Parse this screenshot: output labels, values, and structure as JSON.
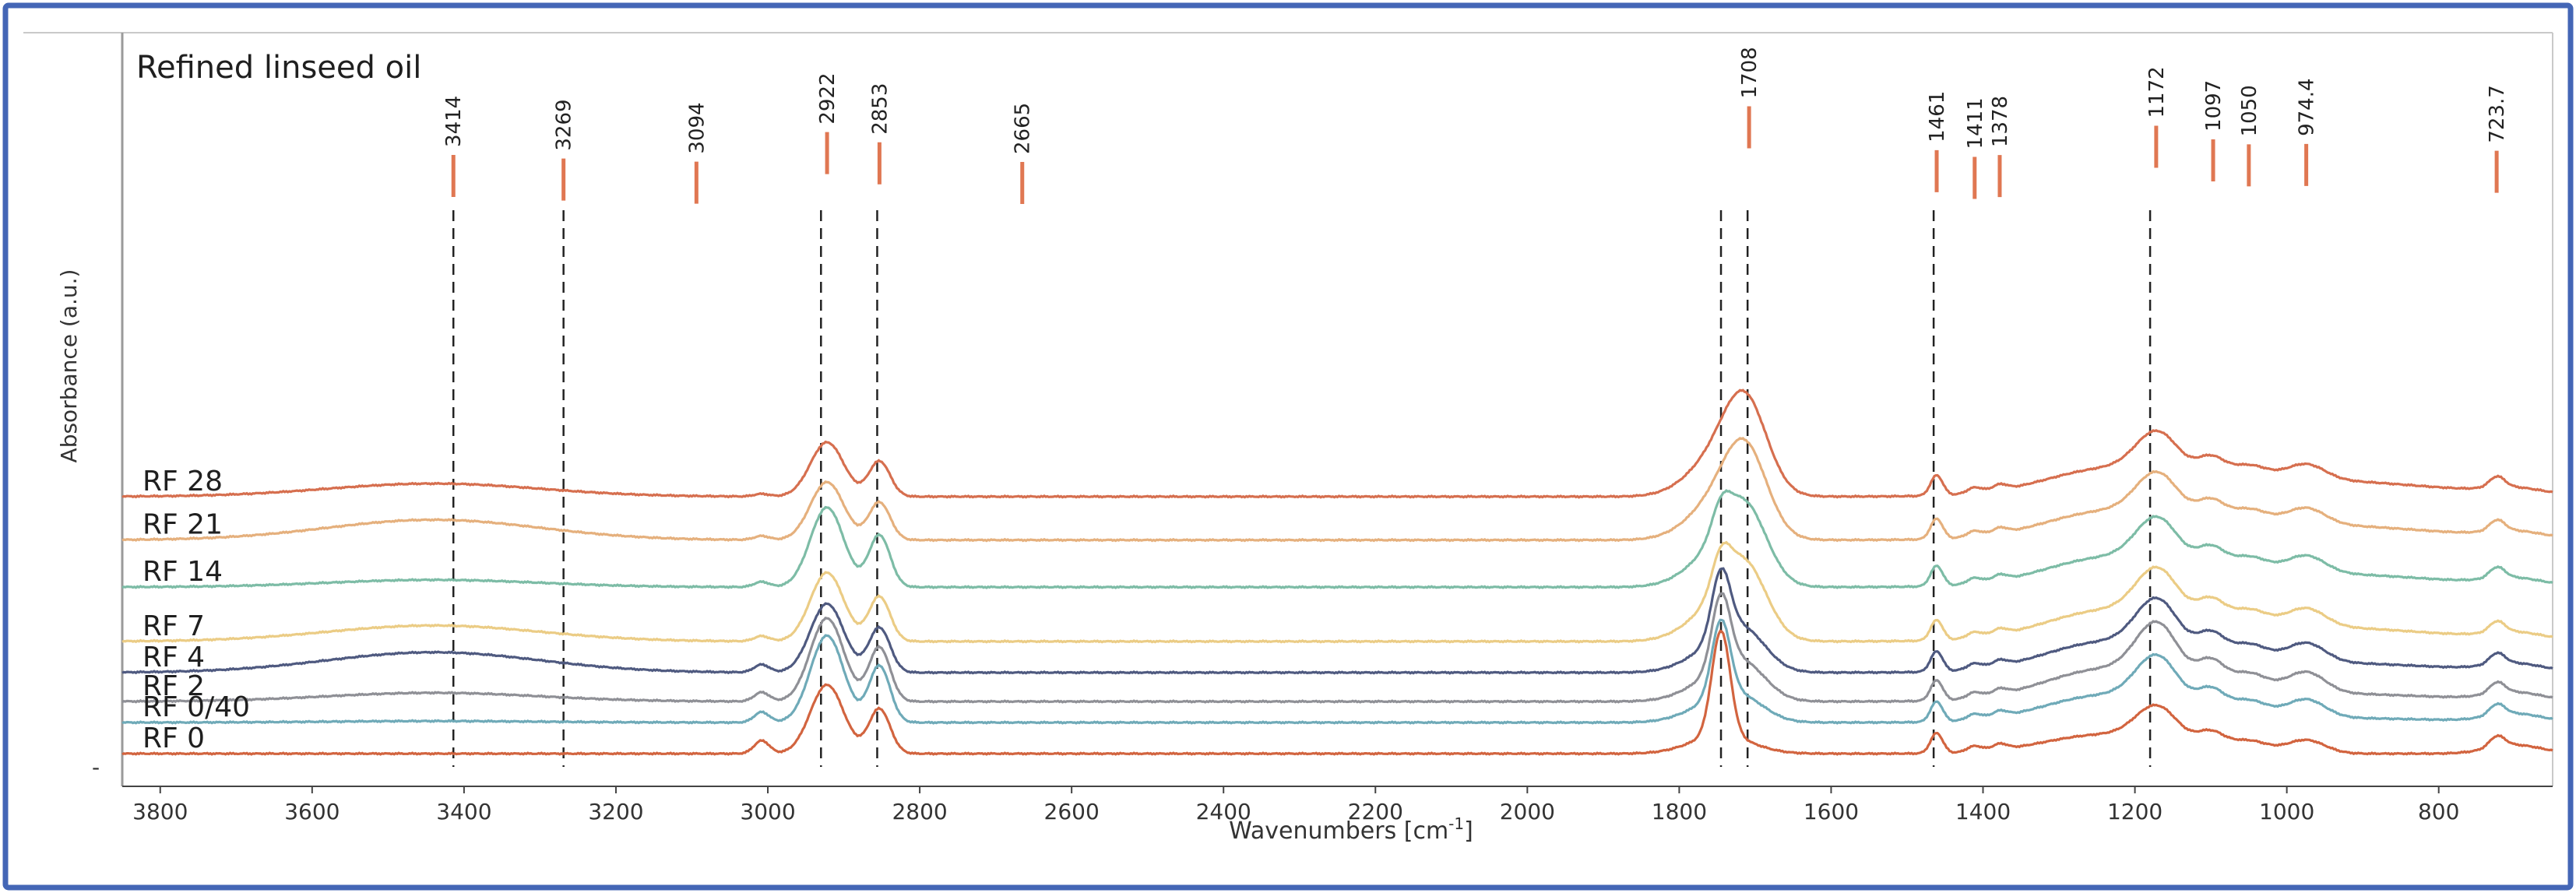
{
  "chart_data": {
    "type": "line",
    "title": "Refined linseed oil",
    "xlabel": "Wavenumbers [cm",
    "xlabel_sup": "-1",
    "xlabel_end": "]",
    "ylabel": "Absorbance  (a.u.)",
    "y_axis_tick": "-",
    "x_range": [
      3850,
      650
    ],
    "x_reversed": true,
    "x_ticks": [
      3800,
      3600,
      3400,
      3200,
      3000,
      2800,
      2600,
      2400,
      2200,
      2000,
      1800,
      1600,
      1400,
      1200,
      1000,
      800
    ],
    "grid": false,
    "legend": "inline labels at left",
    "peak_markers": [
      "3414",
      "3269",
      "3094",
      "2922",
      "2853",
      "2665",
      "1708",
      "1461",
      "1411",
      "1378",
      "1172",
      "1097",
      "1050",
      "974.4",
      "723.7"
    ],
    "dashed_lines": [
      3414,
      3269,
      2930,
      2856,
      1745,
      1710,
      1465,
      1180
    ],
    "series": [
      {
        "name": "RF 28",
        "color": "#d66f4f",
        "baseline": 3.55,
        "profile": "oxidized",
        "sharp_ester": 0.0,
        "acid": 1.0,
        "oh": 0.18,
        "ch": 0.75,
        "fp": 0.85,
        "shift": 0.4
      },
      {
        "name": "RF 21",
        "color": "#e5b07d",
        "baseline": 2.95,
        "profile": "oxidized",
        "sharp_ester": 0.0,
        "acid": 0.95,
        "oh": 0.28,
        "ch": 0.8,
        "fp": 0.9,
        "shift": 0.35
      },
      {
        "name": "RF 14",
        "color": "#7dbca6",
        "baseline": 2.3,
        "profile": "oxidized",
        "sharp_ester": 0.35,
        "acid": 0.8,
        "oh": 0.1,
        "ch": 1.1,
        "fp": 0.95,
        "shift": 0.3
      },
      {
        "name": "RF 7",
        "color": "#ebcc85",
        "baseline": 1.55,
        "profile": "oxidized",
        "sharp_ester": 0.45,
        "acid": 0.75,
        "oh": 0.22,
        "ch": 0.95,
        "fp": 1.0,
        "shift": 0.3
      },
      {
        "name": "RF 4",
        "color": "#4f5a80",
        "baseline": 1.12,
        "profile": "mixed",
        "sharp_ester": 0.9,
        "acid": 0.35,
        "oh": 0.28,
        "ch": 0.95,
        "fp": 1.05,
        "shift": 0.2
      },
      {
        "name": "RF 2",
        "color": "#8f9096",
        "baseline": 0.72,
        "profile": "mixed",
        "sharp_ester": 1.0,
        "acid": 0.3,
        "oh": 0.12,
        "ch": 1.15,
        "fp": 1.15,
        "shift": 0.15
      },
      {
        "name": "RF 0/40",
        "color": "#6faab8",
        "baseline": 0.43,
        "profile": "fresh",
        "sharp_ester": 1.05,
        "acid": 0.15,
        "oh": 0.02,
        "ch": 1.2,
        "fp": 1.0,
        "shift": 0.1
      },
      {
        "name": "RF 0",
        "color": "#d2643f",
        "baseline": 0.0,
        "profile": "fresh",
        "sharp_ester": 1.45,
        "acid": 0.0,
        "oh": 0.0,
        "ch": 0.95,
        "fp": 0.75,
        "shift": 0.0
      }
    ]
  },
  "colors": {
    "frame_border": "#4466b6",
    "axis": "#444444",
    "dashed": "#222222",
    "marker": "#e07752"
  }
}
